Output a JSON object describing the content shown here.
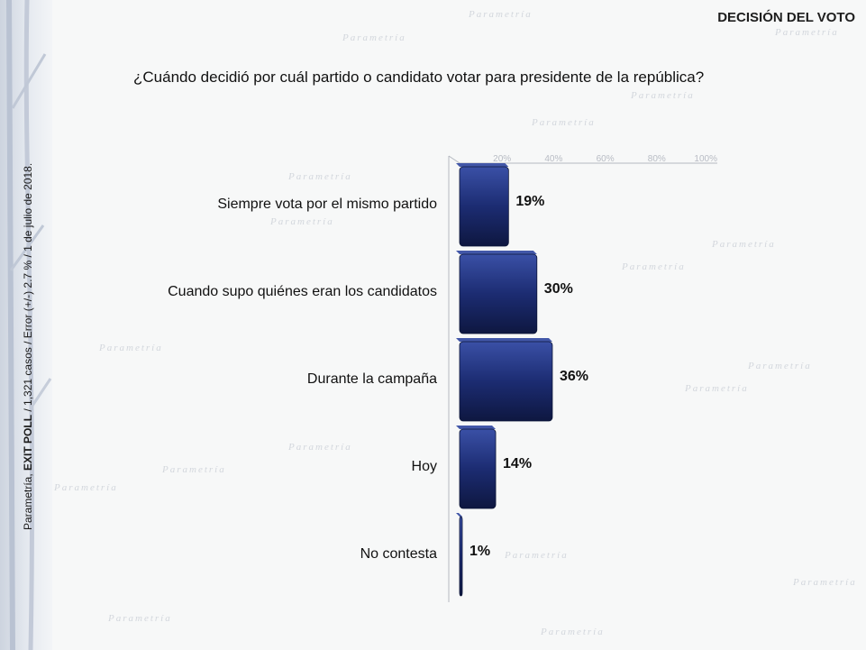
{
  "header": {
    "section_title": "DECISIÓN DEL VOTO"
  },
  "question": "¿Cuándo decidió por cuál partido o candidato votar para presidente de la república?",
  "side_note": {
    "prefix": "Parametría, ",
    "bold": "EXIT POLL",
    "rest": " / 1,321 casos / Error (+/-) 2.7 % / 1 de julio de 2018."
  },
  "watermark": "Parametría",
  "colors": {
    "bar": "#1a2a6e",
    "bar_light": "#34489a",
    "bar_dark": "#0e1740"
  },
  "chart_data": {
    "type": "bar",
    "orientation": "horizontal",
    "categories": [
      "Siempre vota por el mismo partido",
      "Cuando supo quiénes eran los candidatos",
      "Durante la campaña",
      "Hoy",
      "No contesta"
    ],
    "values": [
      19,
      30,
      36,
      14,
      1
    ],
    "value_labels": [
      "19%",
      "30%",
      "36%",
      "14%",
      "1%"
    ],
    "xlim": [
      0,
      100
    ],
    "x_ticks": [
      "20%",
      "40%",
      "60%",
      "80%",
      "100%"
    ],
    "x_tick_values": [
      20,
      40,
      60,
      80,
      100
    ],
    "title": "",
    "xlabel": "",
    "ylabel": "",
    "grid": false,
    "legend": "none"
  }
}
